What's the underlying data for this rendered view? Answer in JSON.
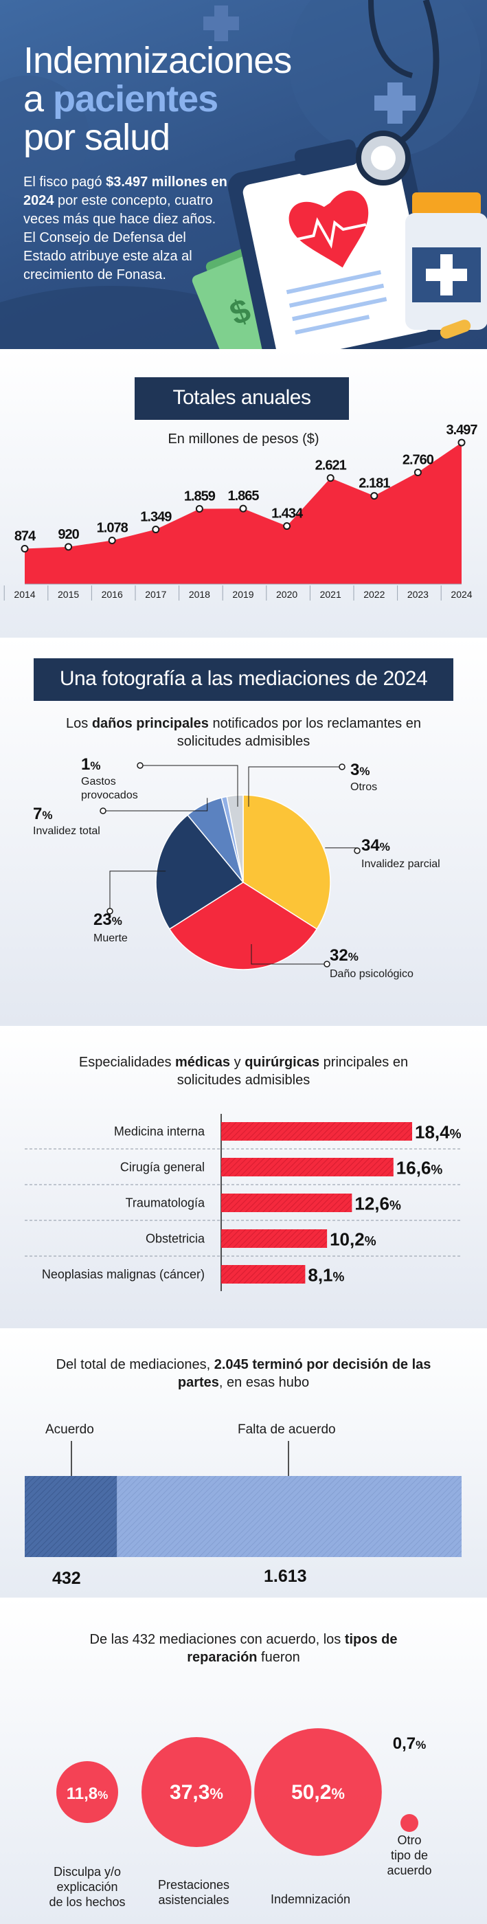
{
  "hero": {
    "title_line1": "Indemnizaciones",
    "title_line2_a": "a ",
    "title_line2_b": "pacientes",
    "title_line3": "por salud",
    "lead_1": "El fisco pagó ",
    "lead_bold_1": "$3.497 millones en 2024",
    "lead_2": " por este concepto, cuatro veces más que hace diez años. El Consejo de Defensa del Estado atribuye este alza al crecimiento de Fonasa."
  },
  "colors": {
    "navy": "#1f3556",
    "red": "#f4293d",
    "yellow": "#fcc437",
    "blue_dark": "#213c66",
    "blue_mid": "#5b82c0",
    "blue_light": "#91b0e6",
    "grey": "#cfd4da"
  },
  "chart_data": [
    {
      "type": "area",
      "title": "Totales anuales",
      "subtitle": "En millones de pesos ($)",
      "categories": [
        "2014",
        "2015",
        "2016",
        "2017",
        "2018",
        "2019",
        "2020",
        "2021",
        "2022",
        "2023",
        "2024"
      ],
      "values": [
        874,
        920,
        1078,
        1349,
        1859,
        1865,
        1434,
        2621,
        2181,
        2760,
        3497
      ],
      "labels": [
        "874",
        "920",
        "1.078",
        "1.349",
        "1.859",
        "1.865",
        "1.434",
        "2.621",
        "2.181",
        "2.760",
        "3.497"
      ],
      "ylim": [
        0,
        3600
      ]
    },
    {
      "type": "pie",
      "title": "Una fotografía a las mediaciones de 2024",
      "subtitle_pre": "Los ",
      "subtitle_bold": "daños principales",
      "subtitle_post": " notificados por los reclamantes en solicitudes admisibles",
      "slices": [
        {
          "name": "Invalidez parcial",
          "value": 34,
          "label": "34%",
          "color": "#fcc437"
        },
        {
          "name": "Daño psicológico",
          "value": 32,
          "label": "32%",
          "color": "#f4293d"
        },
        {
          "name": "Muerte",
          "value": 23,
          "label": "23%",
          "color": "#213c66"
        },
        {
          "name": "Invalidez total",
          "value": 7,
          "label": "7%",
          "color": "#5b82c0"
        },
        {
          "name": "Gastos provocados",
          "value": 1,
          "label": "1%",
          "color": "#91b0e6"
        },
        {
          "name": "Otros",
          "value": 3,
          "label": "3%",
          "color": "#cfd4da"
        }
      ]
    },
    {
      "type": "bar",
      "title_pre": "Especialidades ",
      "title_bold1": "médicas",
      "title_mid": " y ",
      "title_bold2": "quirúrgicas",
      "title_post": " principales en solicitudes admisibles",
      "categories": [
        "Medicina interna",
        "Cirugía general",
        "Traumatología",
        "Obstetricia",
        "Neoplasias malignas (cáncer)"
      ],
      "values": [
        18.4,
        16.6,
        12.6,
        10.2,
        8.1
      ],
      "labels": [
        "18,4%",
        "16,6%",
        "12,6%",
        "10,2%",
        "8,1%"
      ],
      "xlim": [
        0,
        18.4
      ]
    },
    {
      "type": "bar",
      "orientation": "stacked-horizontal",
      "title_pre": "Del total de mediaciones, ",
      "title_bold": "2.045 terminó por decisión de las partes",
      "title_post": ", en esas hubo",
      "total": 2045,
      "series": [
        {
          "name": "Acuerdo",
          "value": 432,
          "label": "432"
        },
        {
          "name": "Falta de acuerdo",
          "value": 1613,
          "label": "1.613"
        }
      ]
    },
    {
      "type": "scatter",
      "title_pre": "De las 432 mediaciones con acuerdo, los ",
      "title_bold": "tipos de reparación",
      "title_post": " fueron",
      "items": [
        {
          "name": "Disculpa y/o explicación de los hechos",
          "value": 11.8,
          "label": "11,8%"
        },
        {
          "name": "Prestaciones asistenciales",
          "value": 37.3,
          "label": "37,3%"
        },
        {
          "name": "Indemnización",
          "value": 50.2,
          "label": "50,2%"
        },
        {
          "name": "Otro tipo de acuerdo",
          "value": 0.7,
          "label": "0,7%"
        }
      ]
    }
  ]
}
